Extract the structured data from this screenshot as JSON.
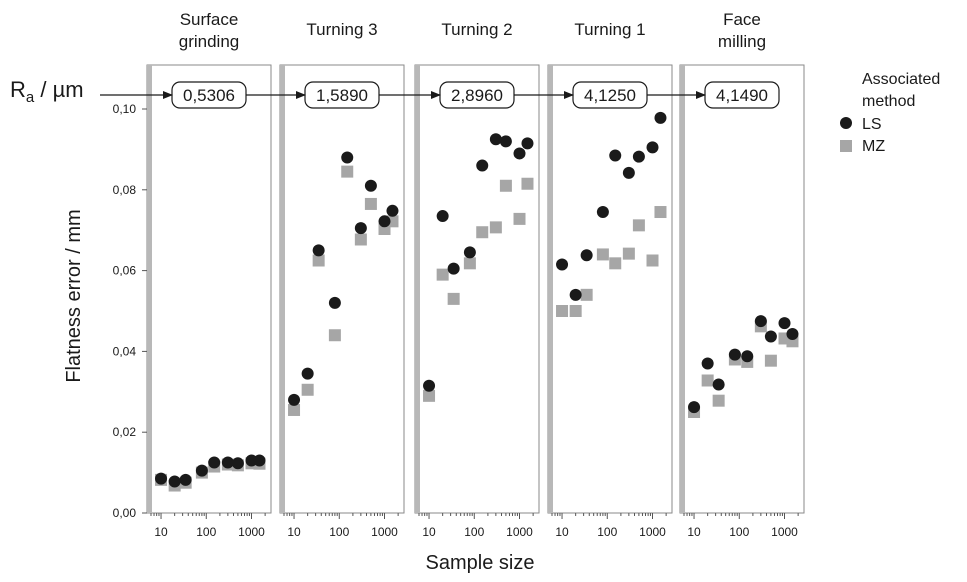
{
  "chart_data": {
    "type": "scatter",
    "xlabel": "Sample size",
    "ylabel": "Flatness error / mm",
    "ra_label": "R",
    "ra_label_sub": "a",
    "ra_label_unit": " / µm",
    "x_scale": "log",
    "xlim": [
      6,
      2200
    ],
    "ylim": [
      0,
      0.105
    ],
    "x_tick_values": [
      10,
      100,
      1000
    ],
    "x_tick_labels": [
      "10",
      "100",
      "1000"
    ],
    "y_tick_values": [
      0,
      0.02,
      0.04,
      0.06,
      0.08,
      0.1
    ],
    "y_tick_labels": [
      "0,00",
      "0,02",
      "0,04",
      "0,06",
      "0,08",
      "0,10"
    ],
    "legend": {
      "title_line1": "Associated",
      "title_line2": "method",
      "placement": "right",
      "entries": [
        {
          "label": "LS",
          "marker": "circle",
          "color": "#1a1a1a"
        },
        {
          "label": "MZ",
          "marker": "square",
          "color": "#a6a6a6"
        }
      ]
    },
    "sample_sizes": [
      10,
      20,
      35,
      80,
      150,
      300,
      500,
      1000,
      1500
    ],
    "panels": [
      {
        "title": [
          "Surface",
          "grinding"
        ],
        "ra_value": "0,5306",
        "ls": [
          0.0085,
          0.0078,
          0.0082,
          0.0105,
          0.0125,
          0.0125,
          0.0123,
          0.013,
          0.013
        ],
        "mz": [
          0.0082,
          0.0068,
          0.0075,
          0.01,
          0.0115,
          0.012,
          0.0118,
          0.0123,
          0.0122
        ]
      },
      {
        "title": [
          "Turning 3"
        ],
        "ra_value": "1,5890",
        "ls": [
          0.028,
          0.0345,
          0.065,
          0.052,
          0.088,
          0.0705,
          0.081,
          0.0722,
          0.0748
        ],
        "mz": [
          0.0255,
          0.0305,
          0.0625,
          0.044,
          0.0845,
          0.0677,
          0.0765,
          0.0703,
          0.0722
        ]
      },
      {
        "title": [
          "Turning 2"
        ],
        "ra_value": "2,8960",
        "ls": [
          0.0315,
          0.0735,
          0.0605,
          0.0645,
          0.086,
          0.0925,
          0.092,
          0.089,
          0.0915
        ],
        "mz": [
          0.029,
          0.059,
          0.053,
          0.0618,
          0.0695,
          0.0707,
          0.081,
          0.0728,
          0.0815
        ]
      },
      {
        "title": [
          "Turning 1"
        ],
        "ra_value": "4,1250",
        "ls": [
          0.0615,
          0.054,
          0.0638,
          0.0745,
          0.0885,
          0.0842,
          0.0882,
          0.0905,
          0.0978
        ],
        "mz": [
          0.05,
          0.05,
          0.054,
          0.064,
          0.0618,
          0.0642,
          0.0712,
          0.0625,
          0.0745
        ]
      },
      {
        "title": [
          "Face",
          "milling"
        ],
        "ra_value": "4,1490",
        "ls": [
          0.0262,
          0.037,
          0.0318,
          0.0392,
          0.0388,
          0.0475,
          0.0437,
          0.047,
          0.0443
        ],
        "mz": [
          0.025,
          0.0328,
          0.0278,
          0.038,
          0.0374,
          0.0462,
          0.0377,
          0.0432,
          0.0425
        ]
      }
    ]
  }
}
